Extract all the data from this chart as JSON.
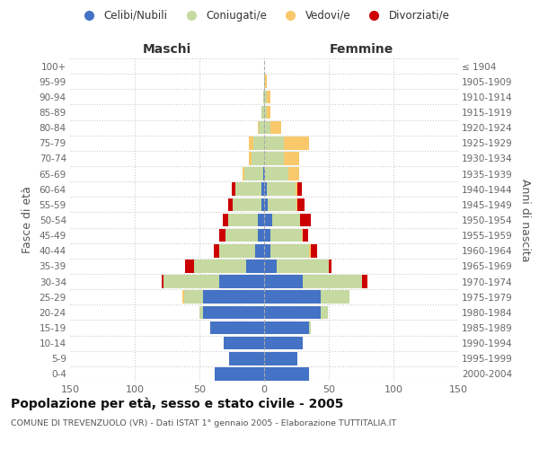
{
  "age_groups": [
    "0-4",
    "5-9",
    "10-14",
    "15-19",
    "20-24",
    "25-29",
    "30-34",
    "35-39",
    "40-44",
    "45-49",
    "50-54",
    "55-59",
    "60-64",
    "65-69",
    "70-74",
    "75-79",
    "80-84",
    "85-89",
    "90-94",
    "95-99",
    "100+"
  ],
  "birth_years": [
    "2000-2004",
    "1995-1999",
    "1990-1994",
    "1985-1989",
    "1980-1984",
    "1975-1979",
    "1970-1974",
    "1965-1969",
    "1960-1964",
    "1955-1959",
    "1950-1954",
    "1945-1949",
    "1940-1944",
    "1935-1939",
    "1930-1934",
    "1925-1929",
    "1920-1924",
    "1915-1919",
    "1910-1914",
    "1905-1909",
    "≤ 1904"
  ],
  "male_celibi": [
    38,
    27,
    31,
    42,
    47,
    47,
    35,
    14,
    7,
    5,
    5,
    2,
    2,
    1,
    0,
    0,
    0,
    0,
    0,
    0,
    0
  ],
  "male_coniugati": [
    0,
    0,
    0,
    0,
    3,
    15,
    43,
    40,
    28,
    25,
    23,
    22,
    20,
    14,
    10,
    8,
    4,
    2,
    1,
    0,
    0
  ],
  "male_vedovi": [
    0,
    0,
    0,
    0,
    0,
    1,
    0,
    0,
    0,
    0,
    0,
    0,
    0,
    2,
    2,
    4,
    1,
    0,
    0,
    0,
    0
  ],
  "male_divorziati": [
    0,
    0,
    0,
    0,
    0,
    0,
    1,
    7,
    4,
    5,
    4,
    4,
    3,
    0,
    0,
    0,
    0,
    0,
    0,
    0,
    0
  ],
  "female_celibi": [
    35,
    26,
    30,
    35,
    44,
    44,
    30,
    10,
    5,
    5,
    6,
    3,
    2,
    1,
    0,
    0,
    0,
    0,
    0,
    0,
    0
  ],
  "female_coniugati": [
    0,
    0,
    0,
    1,
    5,
    22,
    46,
    40,
    30,
    24,
    22,
    22,
    22,
    18,
    15,
    15,
    5,
    2,
    2,
    1,
    0
  ],
  "female_vedovi": [
    0,
    0,
    0,
    0,
    0,
    0,
    0,
    0,
    1,
    1,
    0,
    1,
    2,
    8,
    12,
    20,
    8,
    3,
    3,
    1,
    0
  ],
  "female_divorziati": [
    0,
    0,
    0,
    0,
    0,
    0,
    4,
    2,
    5,
    4,
    8,
    5,
    3,
    0,
    0,
    0,
    0,
    0,
    0,
    0,
    0
  ],
  "color_celibi": "#4472C4",
  "color_coniugati": "#C5D9A0",
  "color_vedovi": "#F9C86A",
  "color_divorziati": "#CC0000",
  "title_main": "Popolazione per età, sesso e stato civile - 2005",
  "title_sub": "COMUNE DI TREVENZUOLO (VR) - Dati ISTAT 1° gennaio 2005 - Elaborazione TUTTITALIA.IT",
  "xlabel_left": "Maschi",
  "xlabel_right": "Femmine",
  "ylabel_left": "Fasce di età",
  "ylabel_right": "Anni di nascita",
  "xlim": 150,
  "bg_color": "#ffffff",
  "grid_color": "#cccccc"
}
